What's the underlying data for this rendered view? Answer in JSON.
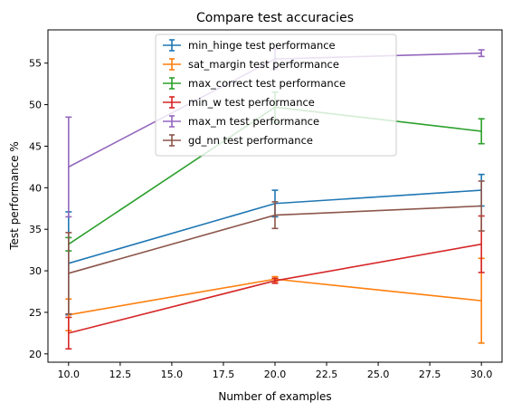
{
  "chart_data": {
    "type": "line",
    "title": "Compare test accuracies",
    "xlabel": "Number of examples",
    "ylabel": "Test performance %",
    "x": [
      10,
      20,
      30
    ],
    "xlim": [
      9,
      31
    ],
    "ylim": [
      19,
      59
    ],
    "xticks": [
      "10.0",
      "12.5",
      "15.0",
      "17.5",
      "20.0",
      "22.5",
      "25.0",
      "27.5",
      "30.0"
    ],
    "xtick_values": [
      10,
      12.5,
      15,
      17.5,
      20,
      22.5,
      25,
      27.5,
      30
    ],
    "yticks": [
      "20",
      "25",
      "30",
      "35",
      "40",
      "45",
      "50",
      "55"
    ],
    "ytick_values": [
      20,
      25,
      30,
      35,
      40,
      45,
      50,
      55
    ],
    "grid": false,
    "legend_position": "top-center",
    "series": [
      {
        "name": "min_hinge test performance",
        "color": "#1f77b4",
        "values": [
          30.9,
          38.1,
          39.7
        ],
        "errors": [
          6.2,
          1.6,
          1.9
        ]
      },
      {
        "name": "sat_margin test performance",
        "color": "#ff7f0e",
        "values": [
          24.7,
          29.0,
          26.4
        ],
        "errors": [
          1.9,
          0.3,
          5.1
        ]
      },
      {
        "name": "max_correct test performance",
        "color": "#2ca02c",
        "values": [
          33.2,
          49.7,
          46.8
        ],
        "errors": [
          0.8,
          1.8,
          1.5
        ]
      },
      {
        "name": "min_w test performance",
        "color": "#d62728",
        "values": [
          22.5,
          28.8,
          33.2
        ],
        "errors": [
          1.9,
          0.3,
          3.4
        ]
      },
      {
        "name": "max_m test performance",
        "color": "#9467bd",
        "values": [
          42.5,
          55.5,
          56.2
        ],
        "errors": [
          6.0,
          1.2,
          0.4
        ]
      },
      {
        "name": "gd_nn test performance",
        "color": "#8c564b",
        "values": [
          29.7,
          36.7,
          37.8
        ],
        "errors": [
          4.9,
          1.6,
          3.0
        ]
      }
    ]
  }
}
